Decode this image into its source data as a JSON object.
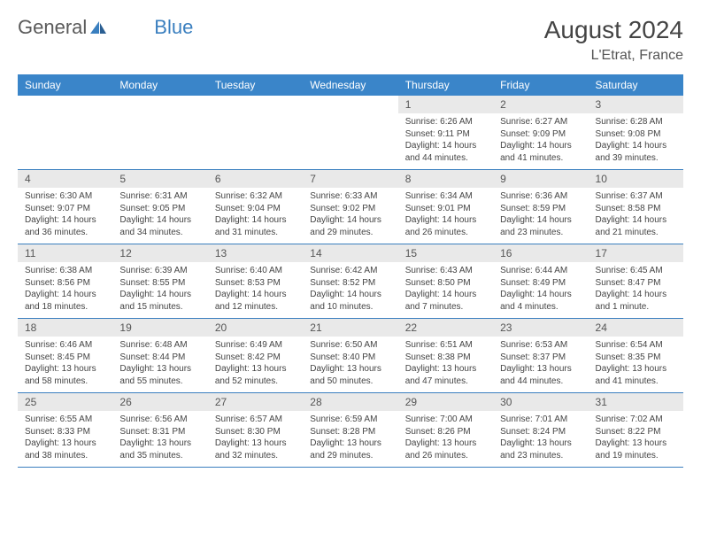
{
  "brand": {
    "part1": "General",
    "part2": "Blue"
  },
  "header": {
    "title": "August 2024",
    "location": "L'Etrat, France"
  },
  "colors": {
    "header_bg": "#3a85c9",
    "header_text": "#ffffff",
    "daynum_bg": "#e9e9e9",
    "border": "#3a7fbf",
    "text": "#444444"
  },
  "weekdays": [
    "Sunday",
    "Monday",
    "Tuesday",
    "Wednesday",
    "Thursday",
    "Friday",
    "Saturday"
  ],
  "weeks": [
    {
      "nums": [
        "",
        "",
        "",
        "",
        "1",
        "2",
        "3"
      ],
      "cells": [
        null,
        null,
        null,
        null,
        {
          "sunrise": "Sunrise: 6:26 AM",
          "sunset": "Sunset: 9:11 PM",
          "day1": "Daylight: 14 hours",
          "day2": "and 44 minutes."
        },
        {
          "sunrise": "Sunrise: 6:27 AM",
          "sunset": "Sunset: 9:09 PM",
          "day1": "Daylight: 14 hours",
          "day2": "and 41 minutes."
        },
        {
          "sunrise": "Sunrise: 6:28 AM",
          "sunset": "Sunset: 9:08 PM",
          "day1": "Daylight: 14 hours",
          "day2": "and 39 minutes."
        }
      ]
    },
    {
      "nums": [
        "4",
        "5",
        "6",
        "7",
        "8",
        "9",
        "10"
      ],
      "cells": [
        {
          "sunrise": "Sunrise: 6:30 AM",
          "sunset": "Sunset: 9:07 PM",
          "day1": "Daylight: 14 hours",
          "day2": "and 36 minutes."
        },
        {
          "sunrise": "Sunrise: 6:31 AM",
          "sunset": "Sunset: 9:05 PM",
          "day1": "Daylight: 14 hours",
          "day2": "and 34 minutes."
        },
        {
          "sunrise": "Sunrise: 6:32 AM",
          "sunset": "Sunset: 9:04 PM",
          "day1": "Daylight: 14 hours",
          "day2": "and 31 minutes."
        },
        {
          "sunrise": "Sunrise: 6:33 AM",
          "sunset": "Sunset: 9:02 PM",
          "day1": "Daylight: 14 hours",
          "day2": "and 29 minutes."
        },
        {
          "sunrise": "Sunrise: 6:34 AM",
          "sunset": "Sunset: 9:01 PM",
          "day1": "Daylight: 14 hours",
          "day2": "and 26 minutes."
        },
        {
          "sunrise": "Sunrise: 6:36 AM",
          "sunset": "Sunset: 8:59 PM",
          "day1": "Daylight: 14 hours",
          "day2": "and 23 minutes."
        },
        {
          "sunrise": "Sunrise: 6:37 AM",
          "sunset": "Sunset: 8:58 PM",
          "day1": "Daylight: 14 hours",
          "day2": "and 21 minutes."
        }
      ]
    },
    {
      "nums": [
        "11",
        "12",
        "13",
        "14",
        "15",
        "16",
        "17"
      ],
      "cells": [
        {
          "sunrise": "Sunrise: 6:38 AM",
          "sunset": "Sunset: 8:56 PM",
          "day1": "Daylight: 14 hours",
          "day2": "and 18 minutes."
        },
        {
          "sunrise": "Sunrise: 6:39 AM",
          "sunset": "Sunset: 8:55 PM",
          "day1": "Daylight: 14 hours",
          "day2": "and 15 minutes."
        },
        {
          "sunrise": "Sunrise: 6:40 AM",
          "sunset": "Sunset: 8:53 PM",
          "day1": "Daylight: 14 hours",
          "day2": "and 12 minutes."
        },
        {
          "sunrise": "Sunrise: 6:42 AM",
          "sunset": "Sunset: 8:52 PM",
          "day1": "Daylight: 14 hours",
          "day2": "and 10 minutes."
        },
        {
          "sunrise": "Sunrise: 6:43 AM",
          "sunset": "Sunset: 8:50 PM",
          "day1": "Daylight: 14 hours",
          "day2": "and 7 minutes."
        },
        {
          "sunrise": "Sunrise: 6:44 AM",
          "sunset": "Sunset: 8:49 PM",
          "day1": "Daylight: 14 hours",
          "day2": "and 4 minutes."
        },
        {
          "sunrise": "Sunrise: 6:45 AM",
          "sunset": "Sunset: 8:47 PM",
          "day1": "Daylight: 14 hours",
          "day2": "and 1 minute."
        }
      ]
    },
    {
      "nums": [
        "18",
        "19",
        "20",
        "21",
        "22",
        "23",
        "24"
      ],
      "cells": [
        {
          "sunrise": "Sunrise: 6:46 AM",
          "sunset": "Sunset: 8:45 PM",
          "day1": "Daylight: 13 hours",
          "day2": "and 58 minutes."
        },
        {
          "sunrise": "Sunrise: 6:48 AM",
          "sunset": "Sunset: 8:44 PM",
          "day1": "Daylight: 13 hours",
          "day2": "and 55 minutes."
        },
        {
          "sunrise": "Sunrise: 6:49 AM",
          "sunset": "Sunset: 8:42 PM",
          "day1": "Daylight: 13 hours",
          "day2": "and 52 minutes."
        },
        {
          "sunrise": "Sunrise: 6:50 AM",
          "sunset": "Sunset: 8:40 PM",
          "day1": "Daylight: 13 hours",
          "day2": "and 50 minutes."
        },
        {
          "sunrise": "Sunrise: 6:51 AM",
          "sunset": "Sunset: 8:38 PM",
          "day1": "Daylight: 13 hours",
          "day2": "and 47 minutes."
        },
        {
          "sunrise": "Sunrise: 6:53 AM",
          "sunset": "Sunset: 8:37 PM",
          "day1": "Daylight: 13 hours",
          "day2": "and 44 minutes."
        },
        {
          "sunrise": "Sunrise: 6:54 AM",
          "sunset": "Sunset: 8:35 PM",
          "day1": "Daylight: 13 hours",
          "day2": "and 41 minutes."
        }
      ]
    },
    {
      "nums": [
        "25",
        "26",
        "27",
        "28",
        "29",
        "30",
        "31"
      ],
      "cells": [
        {
          "sunrise": "Sunrise: 6:55 AM",
          "sunset": "Sunset: 8:33 PM",
          "day1": "Daylight: 13 hours",
          "day2": "and 38 minutes."
        },
        {
          "sunrise": "Sunrise: 6:56 AM",
          "sunset": "Sunset: 8:31 PM",
          "day1": "Daylight: 13 hours",
          "day2": "and 35 minutes."
        },
        {
          "sunrise": "Sunrise: 6:57 AM",
          "sunset": "Sunset: 8:30 PM",
          "day1": "Daylight: 13 hours",
          "day2": "and 32 minutes."
        },
        {
          "sunrise": "Sunrise: 6:59 AM",
          "sunset": "Sunset: 8:28 PM",
          "day1": "Daylight: 13 hours",
          "day2": "and 29 minutes."
        },
        {
          "sunrise": "Sunrise: 7:00 AM",
          "sunset": "Sunset: 8:26 PM",
          "day1": "Daylight: 13 hours",
          "day2": "and 26 minutes."
        },
        {
          "sunrise": "Sunrise: 7:01 AM",
          "sunset": "Sunset: 8:24 PM",
          "day1": "Daylight: 13 hours",
          "day2": "and 23 minutes."
        },
        {
          "sunrise": "Sunrise: 7:02 AM",
          "sunset": "Sunset: 8:22 PM",
          "day1": "Daylight: 13 hours",
          "day2": "and 19 minutes."
        }
      ]
    }
  ]
}
